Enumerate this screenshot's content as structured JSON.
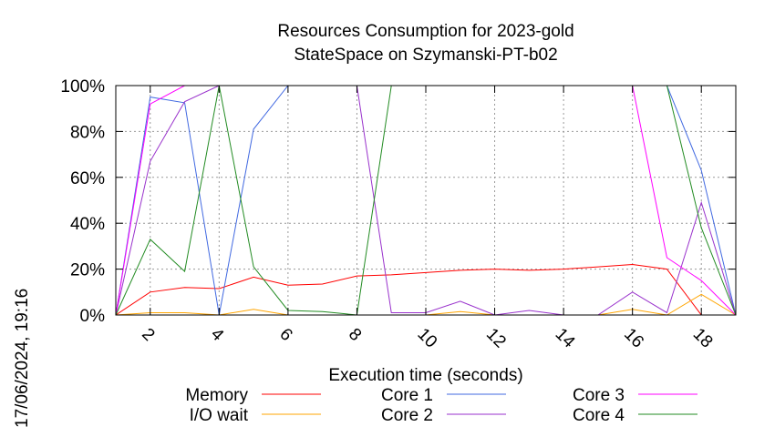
{
  "chart_data": {
    "type": "line",
    "title": [
      "Resources Consumption for 2023-gold",
      "StateSpace on Szymanski-PT-b02"
    ],
    "xlabel": "Execution time (seconds)",
    "ylabel": "",
    "side_label": "17/06/2024, 19:16",
    "xlim": [
      1,
      19
    ],
    "ylim": [
      0,
      100
    ],
    "xticks": [
      2,
      4,
      6,
      8,
      10,
      12,
      14,
      16,
      18
    ],
    "yticks": [
      0,
      20,
      40,
      60,
      80,
      100
    ],
    "ytick_labels": [
      "0%",
      "20%",
      "40%",
      "60%",
      "80%",
      "100%"
    ],
    "grid": true,
    "legend_position": "bottom",
    "x": [
      1,
      2,
      3,
      4,
      5,
      6,
      7,
      8,
      9,
      10,
      11,
      12,
      13,
      14,
      15,
      16,
      17,
      18,
      19
    ],
    "series": [
      {
        "name": "Memory",
        "color": "#ff0000",
        "values": [
          0,
          10,
          12,
          11.5,
          16.5,
          13,
          13.5,
          17,
          17.5,
          18.5,
          19.5,
          20,
          19.5,
          20,
          21,
          22,
          20,
          0,
          0
        ]
      },
      {
        "name": "I/O wait",
        "color": "#ffa500",
        "values": [
          0,
          1,
          1,
          0,
          2.5,
          0,
          0,
          0,
          0,
          0,
          1.5,
          0,
          0,
          0,
          0,
          2.5,
          0,
          9,
          0
        ]
      },
      {
        "name": "Core 1",
        "color": "#4169e1",
        "values": [
          0,
          95,
          92.5,
          0,
          81,
          100,
          100,
          100,
          100,
          100,
          100,
          100,
          100,
          100,
          100,
          100,
          100,
          63,
          0
        ]
      },
      {
        "name": "Core 2",
        "color": "#9932cc",
        "values": [
          0,
          67,
          93,
          100,
          100,
          100,
          100,
          100,
          1,
          1,
          6,
          0,
          2,
          0,
          0,
          10,
          1,
          49,
          0
        ]
      },
      {
        "name": "Core 3",
        "color": "#ff00ff",
        "values": [
          0,
          92,
          100,
          100,
          100,
          100,
          100,
          100,
          100,
          100,
          100,
          100,
          100,
          100,
          100,
          100,
          25,
          15,
          0
        ]
      },
      {
        "name": "Core 4",
        "color": "#228b22",
        "values": [
          0,
          33,
          19,
          100,
          21,
          2,
          1.5,
          0,
          100,
          100,
          100,
          100,
          100,
          100,
          100,
          100,
          100,
          38,
          0
        ]
      }
    ]
  }
}
